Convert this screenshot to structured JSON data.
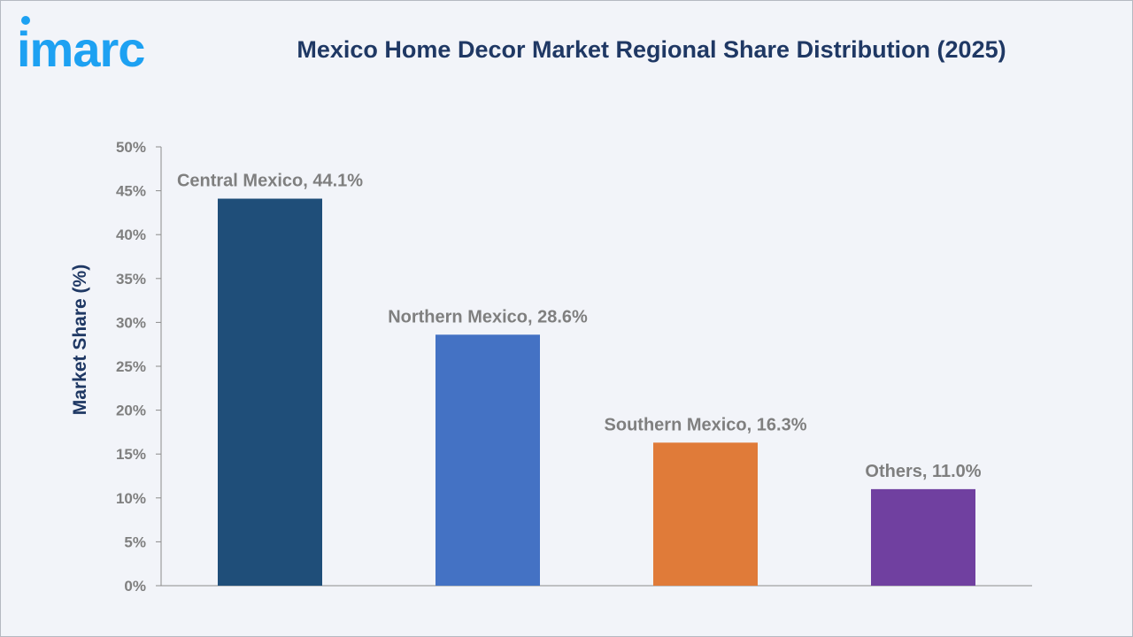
{
  "brand": {
    "logo_text": "imarc",
    "logo_color": "#1da1f2"
  },
  "chart_data": {
    "type": "bar",
    "title": "Mexico Home Decor Market Regional Share Distribution (2025)",
    "ylabel": "Market Share (%)",
    "xlabel": "",
    "ylim": [
      0,
      50
    ],
    "y_ticks": [
      0,
      5,
      10,
      15,
      20,
      25,
      30,
      35,
      40,
      45,
      50
    ],
    "y_tick_labels": [
      "0%",
      "5%",
      "10%",
      "15%",
      "20%",
      "25%",
      "30%",
      "35%",
      "40%",
      "45%",
      "50%"
    ],
    "categories": [
      "Central Mexico",
      "Northern Mexico",
      "Southern Mexico",
      "Others"
    ],
    "values": [
      44.1,
      28.6,
      16.3,
      11.0
    ],
    "data_labels": [
      "Central Mexico, 44.1%",
      "Northern Mexico, 28.6%",
      "Southern Mexico, 16.3%",
      "Others, 11.0%"
    ],
    "colors": [
      "#1f4e79",
      "#4472c4",
      "#e07b39",
      "#7040a0"
    ],
    "grid": false,
    "legend": "none"
  }
}
